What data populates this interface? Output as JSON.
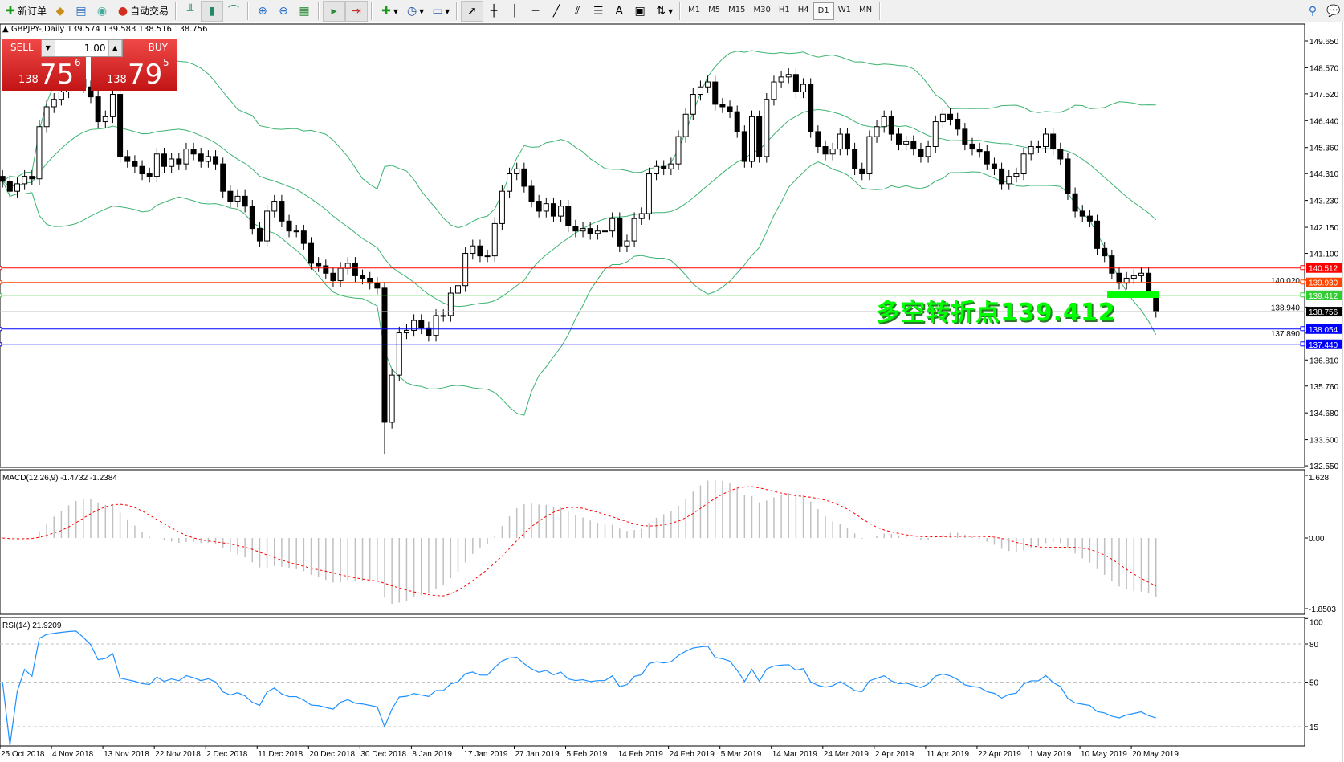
{
  "toolbar": {
    "new_order": "新订单",
    "auto_trade": "自动交易",
    "timeframes": [
      "M1",
      "M5",
      "M15",
      "M30",
      "H1",
      "H4",
      "D1",
      "W1",
      "MN"
    ],
    "active_timeframe": "D1"
  },
  "chart": {
    "symbol": "GBPJPY-,Daily",
    "ohlc": "139.574 139.583 138.516 138.756"
  },
  "trade_panel": {
    "sell_label": "SELL",
    "buy_label": "BUY",
    "lot": "1.00",
    "sell": {
      "big": "138",
      "main": "75",
      "sup": "6"
    },
    "buy": {
      "big": "138",
      "main": "79",
      "sup": "5"
    }
  },
  "annotation": "多空转折点139.412",
  "chart_data": {
    "type": "candlestick",
    "closes": [
      144.0,
      143.6,
      143.9,
      144.2,
      144.1,
      146.2,
      147.0,
      147.3,
      147.6,
      147.9,
      148.1,
      147.8,
      147.4,
      146.4,
      146.6,
      147.5,
      145.0,
      144.8,
      144.6,
      144.3,
      144.2,
      145.1,
      144.6,
      144.9,
      144.7,
      145.3,
      145.1,
      144.8,
      145.0,
      144.7,
      143.6,
      143.2,
      143.4,
      143.0,
      142.1,
      141.6,
      142.8,
      143.2,
      142.4,
      142.0,
      142.0,
      141.5,
      140.7,
      140.6,
      140.3,
      140.0,
      140.5,
      140.7,
      140.2,
      140.1,
      139.9,
      139.7,
      134.3,
      136.2,
      137.9,
      138.0,
      138.4,
      138.1,
      137.8,
      138.6,
      138.6,
      139.5,
      139.8,
      141.1,
      141.4,
      141.0,
      141.0,
      142.3,
      143.6,
      144.3,
      144.5,
      143.8,
      143.2,
      142.8,
      143.1,
      142.6,
      143.0,
      142.2,
      142.0,
      142.1,
      141.9,
      142.0,
      142.0,
      142.5,
      141.4,
      141.6,
      142.5,
      142.7,
      144.3,
      144.6,
      144.5,
      144.7,
      145.8,
      146.7,
      147.5,
      147.8,
      148.0,
      147.1,
      147.0,
      146.8,
      146.0,
      144.8,
      146.6,
      145.0,
      147.3,
      148.0,
      148.2,
      148.3,
      147.6,
      147.9,
      146.0,
      145.4,
      145.1,
      145.3,
      145.9,
      145.3,
      144.5,
      144.3,
      145.8,
      146.2,
      146.6,
      145.9,
      145.5,
      145.6,
      145.3,
      145.0,
      145.4,
      146.4,
      146.7,
      146.5,
      146.1,
      145.5,
      145.3,
      145.2,
      144.7,
      144.5,
      143.9,
      144.2,
      144.3,
      145.1,
      145.4,
      145.4,
      145.9,
      145.3,
      144.9,
      143.5,
      142.8,
      142.6,
      142.4,
      141.3,
      141.0,
      140.3,
      139.9,
      140.1,
      140.2,
      140.3,
      139.574,
      138.756
    ],
    "last_bar": {
      "open": 139.574,
      "high": 139.583,
      "low": 138.516,
      "close": 138.756
    },
    "price_ticks": [
      "149.650",
      "148.570",
      "147.520",
      "146.440",
      "145.360",
      "144.310",
      "143.230",
      "142.150",
      "141.100",
      "140.020",
      "138.940",
      "137.890",
      "136.810",
      "135.760",
      "134.680",
      "133.600",
      "132.550"
    ],
    "hlines": [
      {
        "price": "140.512",
        "color": "#ff0000"
      },
      {
        "price": "139.930",
        "color": "#ff4500"
      },
      {
        "price": "139.412",
        "color": "#32cd32"
      },
      {
        "price": "138.756",
        "color": "#000000",
        "line_color": "#c0c0c0"
      },
      {
        "price": "138.054",
        "color": "#0000ff"
      },
      {
        "price": "137.440",
        "color": "#0000ff"
      }
    ],
    "date_labels": [
      "25 Oct 2018",
      "4 Nov 2018",
      "13 Nov 2018",
      "22 Nov 2018",
      "2 Dec 2018",
      "11 Dec 2018",
      "20 Dec 2018",
      "30 Dec 2018",
      "8 Jan 2019",
      "17 Jan 2019",
      "27 Jan 2019",
      "5 Feb 2019",
      "14 Feb 2019",
      "24 Feb 2019",
      "5 Mar 2019",
      "14 Mar 2019",
      "24 Mar 2019",
      "2 Apr 2019",
      "11 Apr 2019",
      "22 Apr 2019",
      "1 May 2019",
      "10 May 2019",
      "20 May 2019"
    ],
    "bands_color": "#3cb371",
    "macd": {
      "label": "MACD(12,26,9) -1.4732 -1.2384",
      "ticks": [
        "1.628",
        "0.00",
        "-1.8503"
      ],
      "hist_color": "#c0c0c0",
      "signal_color": "#ff0000"
    },
    "rsi": {
      "label": "RSI(14) 21.9209",
      "ticks": [
        "100",
        "80",
        "50",
        "15"
      ],
      "color": "#1e90ff"
    }
  }
}
